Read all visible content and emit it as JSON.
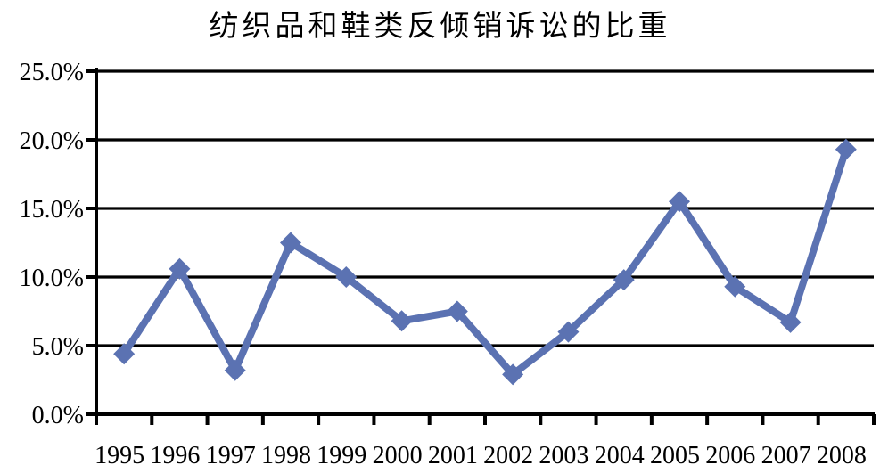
{
  "chart_data": {
    "type": "line",
    "title": "纺织品和鞋类反倾销诉讼的比重",
    "categories": [
      "1995",
      "1996",
      "1997",
      "1998",
      "1999",
      "2000",
      "2001",
      "2002",
      "2003",
      "2004",
      "2005",
      "2006",
      "2007",
      "2008"
    ],
    "series": [
      {
        "name": "纺织品和鞋类反倾销诉讼的比重",
        "values": [
          4.4,
          10.6,
          3.2,
          12.5,
          10.0,
          6.8,
          7.5,
          2.9,
          6.0,
          9.8,
          15.5,
          9.3,
          6.7,
          19.3
        ]
      }
    ],
    "xlabel": "",
    "ylabel": "",
    "ylim": [
      0,
      25
    ],
    "y_tick_values": [
      0,
      5,
      10,
      15,
      20,
      25
    ],
    "y_tick_labels": [
      "0.0%",
      "5.0%",
      "10.0%",
      "15.0%",
      "20.0%",
      "25.0%"
    ],
    "grid": true,
    "legend_position": "none",
    "marker": "diamond",
    "colors": {
      "series_line": "#5b72b2",
      "axis": "#000000",
      "gridline": "#000000",
      "label_text": "#000000",
      "background": "#ffffff"
    }
  }
}
